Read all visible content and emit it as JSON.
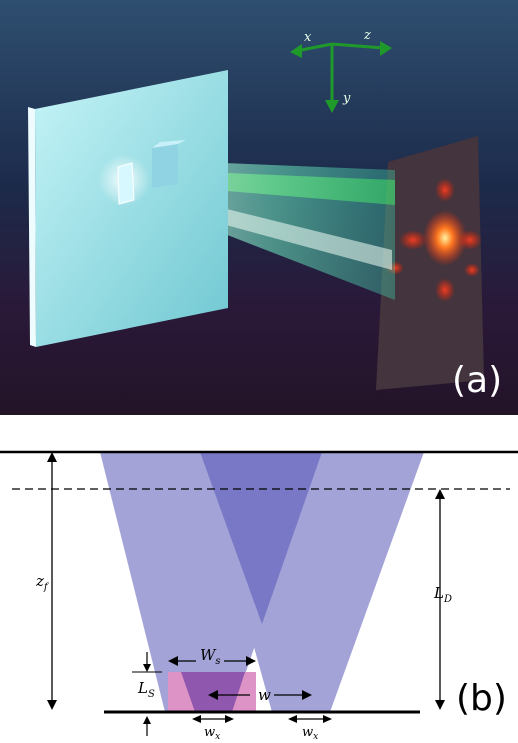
{
  "panel_a": {
    "label": "(a)",
    "axes": {
      "x": "x",
      "z": "z",
      "y": "y"
    },
    "colors": {
      "bg_top": "#2f4b69",
      "bg_bottom": "#2a1630",
      "beam": "#7fffd0",
      "beam_green": "#44ff44",
      "screen": "#9ee3e8",
      "axis_arrow": "#22aa22",
      "pattern": "#ff5a1e"
    }
  },
  "panel_b": {
    "label": "(b)",
    "labels": {
      "z_f": "z",
      "z_f_sub": "f",
      "L_D": "L",
      "L_D_sub": "D",
      "L_S": "L",
      "L_S_sub": "S",
      "W_s": "W",
      "W_s_sub": "s",
      "w": "w",
      "w_x_left": "w",
      "w_x_left_sub": "x",
      "w_x_right": "w",
      "w_x_right_sub": "x"
    },
    "colors": {
      "cone": "#9b9bd6",
      "overlap": "#7575c4",
      "slit": "#d98fc0",
      "slit_overlap": "#8a52a8"
    }
  }
}
